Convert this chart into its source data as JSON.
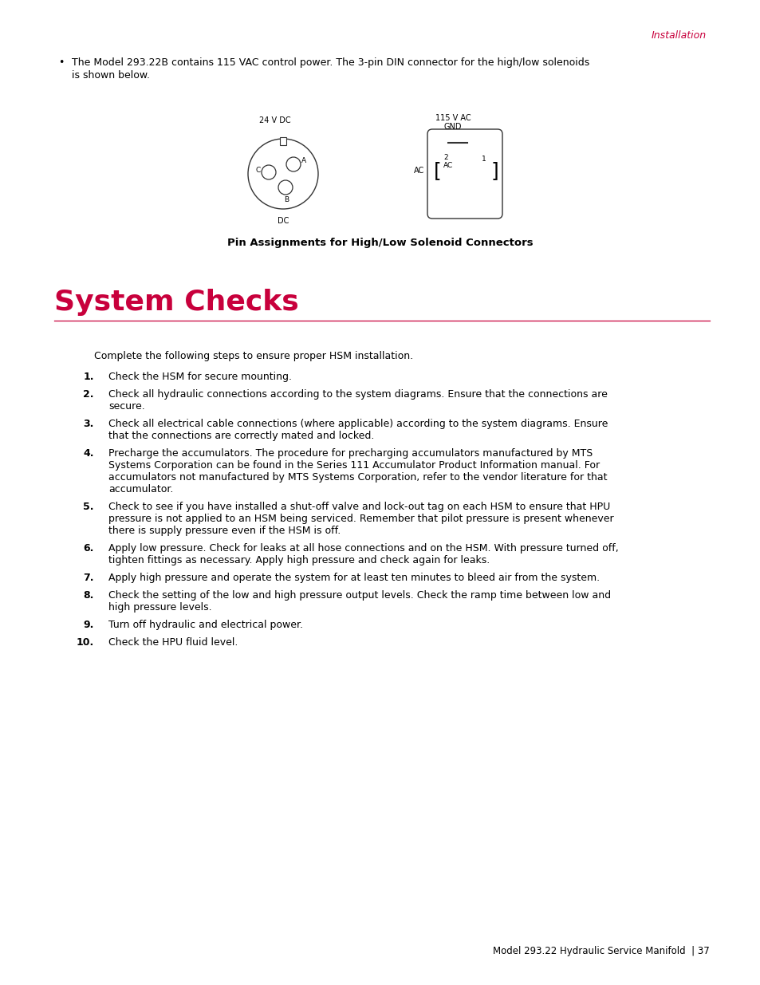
{
  "bg_color": "#ffffff",
  "header_text": "Installation",
  "header_color": "#c8003c",
  "header_fontsize": 9,
  "bullet_text_line1": "The Model 293.22B contains 115 VAC control power. The 3-pin DIN connector for the high/low solenoids",
  "bullet_text_line2": "is shown below.",
  "diagram_caption": "Pin Assignments for High/Low Solenoid Connectors",
  "section_title": "System Checks",
  "section_title_color": "#c8003c",
  "section_title_fontsize": 26,
  "intro_text": "Complete the following steps to ensure proper HSM installation.",
  "steps": [
    [
      "1.",
      "Check the HSM for secure mounting."
    ],
    [
      "2.",
      "Check all hydraulic connections according to the system diagrams. Ensure that the connections are\nsecure."
    ],
    [
      "3.",
      "Check all electrical cable connections (where applicable) according to the system diagrams. Ensure\nthat the connections are correctly mated and locked."
    ],
    [
      "4.",
      "Precharge the accumulators. The procedure for precharging accumulators manufactured by MTS\nSystems Corporation can be found in the Series 111 Accumulator Product Information manual. For\naccumulators not manufactured by MTS Systems Corporation, refer to the vendor literature for that\naccumulator."
    ],
    [
      "5.",
      "Check to see if you have installed a shut-off valve and lock-out tag on each HSM to ensure that HPU\npressure is not applied to an HSM being serviced. Remember that pilot pressure is present whenever\nthere is supply pressure even if the HSM is off."
    ],
    [
      "6.",
      "Apply low pressure. Check for leaks at all hose connections and on the HSM. With pressure turned off,\ntighten fittings as necessary. Apply high pressure and check again for leaks."
    ],
    [
      "7.",
      "Apply high pressure and operate the system for at least ten minutes to bleed air from the system."
    ],
    [
      "8.",
      "Check the setting of the low and high pressure output levels. Check the ramp time between low and\nhigh pressure levels."
    ],
    [
      "9.",
      "Turn off hydraulic and electrical power."
    ],
    [
      "10.",
      "Check the HPU fluid level."
    ]
  ],
  "footer_text": "Model 293.22 Hydraulic Service Manifold  | 37",
  "footer_fontsize": 8.5,
  "body_fontsize": 9,
  "label_fontsize": 7,
  "dc_label": "24 V DC",
  "dc_sublabel": "DC",
  "ac_label": "115 V AC",
  "ac_gnd": "GND",
  "ac_side": "AC",
  "ac_pin2": "2",
  "ac_pin_ac": "AC",
  "ac_pin1": "1"
}
